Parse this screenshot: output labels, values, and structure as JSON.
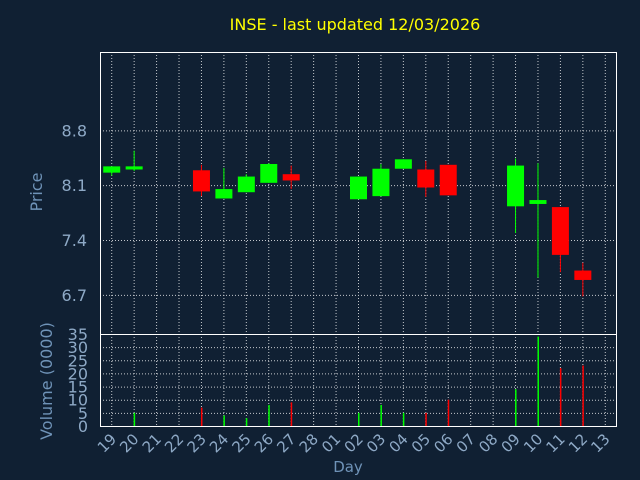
{
  "chart_data": {
    "type": "candlestick",
    "title": "INSE - last updated 12/03/2026",
    "xlabel": "Day",
    "price": {
      "ylabel": "Price",
      "ylim": [
        6.2,
        9.8
      ],
      "yticks": [
        "6.7",
        "7.4",
        "8.1",
        "8.8"
      ]
    },
    "volume": {
      "ylabel": "Volume (0000)",
      "ylim": [
        0,
        35
      ],
      "yticks": [
        "0",
        "5",
        "10",
        "15",
        "20",
        "25",
        "30",
        "35"
      ]
    },
    "grid": true,
    "x_tick_labels": [
      "19",
      "20",
      "21",
      "22",
      "23",
      "24",
      "25",
      "26",
      "27",
      "28",
      "01",
      "02",
      "03",
      "04",
      "05",
      "06",
      "07",
      "08",
      "09",
      "10",
      "11",
      "12",
      "13"
    ],
    "candles": [
      {
        "i": 0,
        "open": 8.26,
        "high": 8.34,
        "low": 8.22,
        "close": 8.34,
        "volume": 0
      },
      {
        "i": 1,
        "open": 8.3,
        "high": 8.54,
        "low": 8.28,
        "close": 8.34,
        "volume": 5
      },
      {
        "i": 4,
        "open": 8.29,
        "high": 8.36,
        "low": 7.96,
        "close": 8.02,
        "volume": 7
      },
      {
        "i": 5,
        "open": 7.93,
        "high": 8.32,
        "low": 7.93,
        "close": 8.05,
        "volume": 4
      },
      {
        "i": 6,
        "open": 8.01,
        "high": 8.24,
        "low": 8.01,
        "close": 8.21,
        "volume": 3
      },
      {
        "i": 7,
        "open": 8.13,
        "high": 8.38,
        "low": 8.13,
        "close": 8.37,
        "volume": 8
      },
      {
        "i": 8,
        "open": 8.24,
        "high": 8.35,
        "low": 8.05,
        "close": 8.16,
        "volume": 9
      },
      {
        "i": 11,
        "open": 7.92,
        "high": 8.21,
        "low": 7.92,
        "close": 8.21,
        "volume": 5
      },
      {
        "i": 12,
        "open": 7.96,
        "high": 8.37,
        "low": 7.96,
        "close": 8.31,
        "volume": 8
      },
      {
        "i": 13,
        "open": 8.31,
        "high": 8.43,
        "low": 8.31,
        "close": 8.43,
        "volume": 5
      },
      {
        "i": 14,
        "open": 8.3,
        "high": 8.41,
        "low": 7.95,
        "close": 8.07,
        "volume": 5
      },
      {
        "i": 15,
        "open": 8.36,
        "high": 8.36,
        "low": 7.97,
        "close": 7.97,
        "volume": 10
      },
      {
        "i": 18,
        "open": 7.83,
        "high": 8.44,
        "low": 7.49,
        "close": 8.35,
        "volume": 14
      },
      {
        "i": 19,
        "open": 7.86,
        "high": 8.38,
        "low": 6.92,
        "close": 7.91,
        "volume": 34
      },
      {
        "i": 20,
        "open": 7.82,
        "high": 7.82,
        "low": 6.99,
        "close": 7.21,
        "volume": 22
      },
      {
        "i": 21,
        "open": 7.01,
        "high": 7.11,
        "low": 6.68,
        "close": 6.89,
        "volume": 23
      }
    ],
    "colors": {
      "up": "#00ff00",
      "down": "#ff0000",
      "background": "#102033",
      "frame": "#ffffff",
      "grid": "#ffffff",
      "title": "#ffff00",
      "label": "#6f93b8",
      "axis_text": "#8ea9c6"
    }
  }
}
